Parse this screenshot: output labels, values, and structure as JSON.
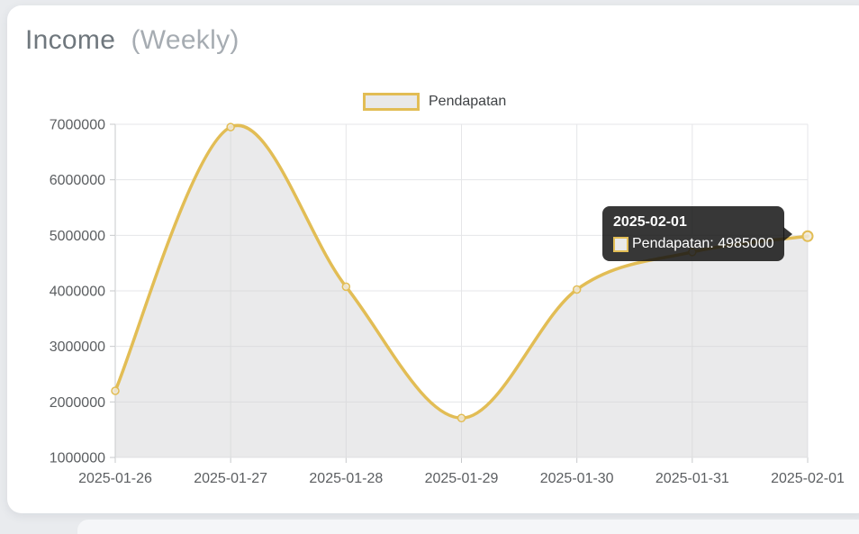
{
  "header": {
    "title": "Income",
    "subtitle": "(Weekly)"
  },
  "legend": {
    "items": [
      {
        "label": "Pendapatan"
      }
    ]
  },
  "tooltip": {
    "title": "2025-02-01",
    "line": "Pendapatan: 4985000",
    "category": "2025-02-01",
    "value": 4985000
  },
  "colors": {
    "line": "#e2bd55",
    "area": "rgba(208,208,210,0.45)",
    "grid": "#e5e6e8",
    "axis_line": "#c7c9cb",
    "tick_label": "#5b5e61",
    "point_fill": "#efe9da",
    "tooltip_bg": "#141414"
  },
  "chart_data": {
    "type": "line",
    "title": "Income (Weekly)",
    "xlabel": "",
    "ylabel": "",
    "categories": [
      "2025-01-26",
      "2025-01-27",
      "2025-01-28",
      "2025-01-29",
      "2025-01-30",
      "2025-01-31",
      "2025-02-01"
    ],
    "series": [
      {
        "name": "Pendapatan",
        "values": [
          2200000,
          6950000,
          4075000,
          1710000,
          4025000,
          4700000,
          4985000
        ]
      }
    ],
    "ylim": [
      1000000,
      7000000
    ],
    "yticks": [
      1000000,
      2000000,
      3000000,
      4000000,
      5000000,
      6000000,
      7000000
    ],
    "grid": true,
    "smooth": true,
    "legend_position": "top-center",
    "tooltip_shown_for": {
      "category": "2025-02-01",
      "value": 4985000
    }
  }
}
